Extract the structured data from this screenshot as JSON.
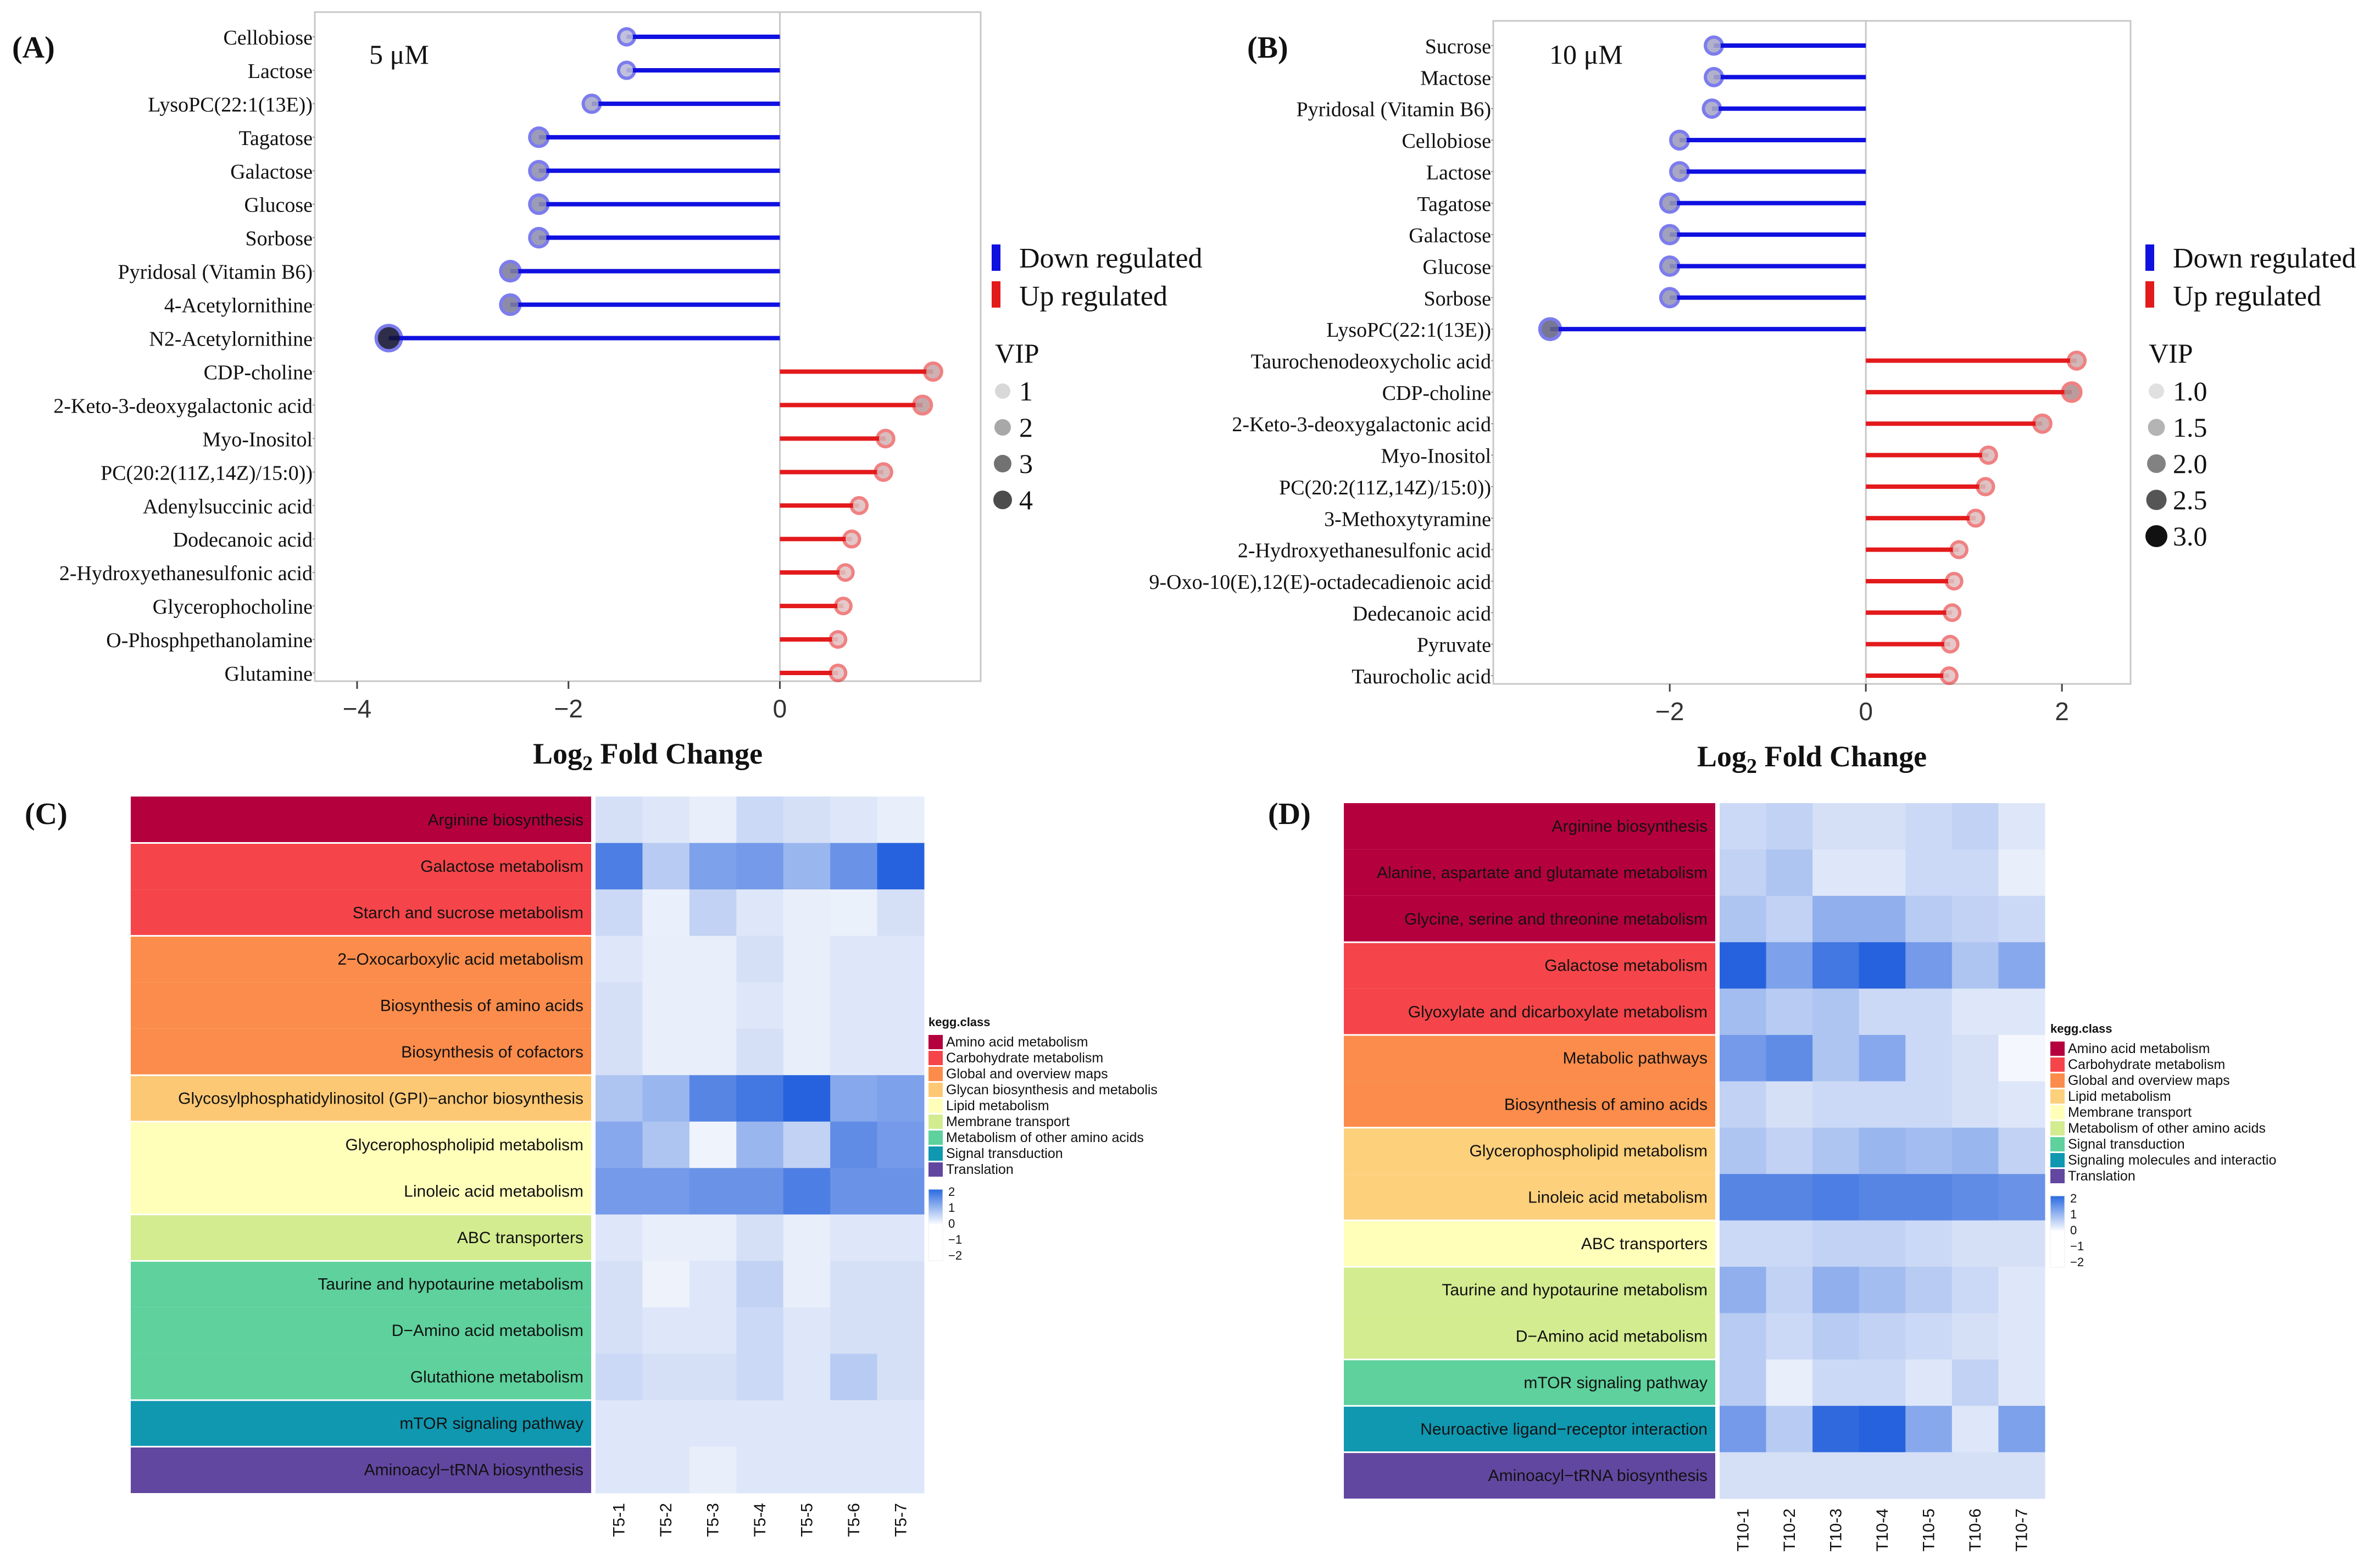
{
  "chart_data": [
    {
      "panel": "(A)",
      "type": "lollipop",
      "annotation": "5 μM",
      "xlabel": "Log2 Fold Change",
      "xlim": [
        -4.4,
        1.9
      ],
      "xticks": [
        -4,
        -2,
        0
      ],
      "grid": false,
      "legend_position": "right",
      "legend": {
        "down": "Down regulated",
        "up": "Up regulated",
        "vip_title": "VIP",
        "vip_levels": [
          "1",
          "2",
          "3",
          "4"
        ]
      },
      "colors": {
        "down": "#1010e0",
        "up": "#e31a1c"
      },
      "items": [
        {
          "label": "Cellobiose",
          "value": -1.45,
          "vip": 1.2
        },
        {
          "label": "Lactose",
          "value": -1.45,
          "vip": 1.2
        },
        {
          "label": "LysoPC(22:1(13E))",
          "value": -1.78,
          "vip": 1.5
        },
        {
          "label": "Tagatose",
          "value": -2.28,
          "vip": 1.9
        },
        {
          "label": "Galactose",
          "value": -2.28,
          "vip": 1.9
        },
        {
          "label": "Glucose",
          "value": -2.28,
          "vip": 1.9
        },
        {
          "label": "Sorbose",
          "value": -2.28,
          "vip": 1.9
        },
        {
          "label": "Pyridosal (Vitamin B6)",
          "value": -2.55,
          "vip": 2.2
        },
        {
          "label": "4-Acetylornithine",
          "value": -2.55,
          "vip": 2.2
        },
        {
          "label": "N2-Acetylornithine",
          "value": -3.7,
          "vip": 4.0
        },
        {
          "label": "CDP-choline",
          "value": 1.45,
          "vip": 1.5
        },
        {
          "label": "2-Keto-3-deoxygalactonic acid",
          "value": 1.35,
          "vip": 1.7
        },
        {
          "label": "Myo-Inositol",
          "value": 1.0,
          "vip": 1.3
        },
        {
          "label": "PC(20:2(11Z,14Z)/15:0))",
          "value": 0.98,
          "vip": 1.3
        },
        {
          "label": "Adenylsuccinic acid",
          "value": 0.75,
          "vip": 1.1
        },
        {
          "label": "Dodecanoic acid",
          "value": 0.68,
          "vip": 1.1
        },
        {
          "label": "2-Hydroxyethanesulfonic acid",
          "value": 0.62,
          "vip": 1.0
        },
        {
          "label": "Glycerophocholine",
          "value": 0.6,
          "vip": 1.0
        },
        {
          "label": "O-Phosphpethanolamine",
          "value": 0.55,
          "vip": 1.0
        },
        {
          "label": "Glutamine",
          "value": 0.55,
          "vip": 1.0
        }
      ]
    },
    {
      "panel": "(B)",
      "type": "lollipop",
      "annotation": "10 μM",
      "xlabel": "Log2 Fold Change",
      "xlim": [
        -3.8,
        2.7
      ],
      "xticks": [
        -2,
        0,
        2
      ],
      "grid": false,
      "legend_position": "right",
      "legend": {
        "down": "Down regulated",
        "up": "Up regulated",
        "vip_title": "VIP",
        "vip_levels": [
          "1.0",
          "1.5",
          "2.0",
          "2.5",
          "3.0"
        ]
      },
      "colors": {
        "down": "#1010e0",
        "up": "#e31a1c"
      },
      "items": [
        {
          "label": "Sucrose",
          "value": -1.55,
          "vip": 1.5
        },
        {
          "label": "Mactose",
          "value": -1.55,
          "vip": 1.5
        },
        {
          "label": "Pyridosal (Vitamin B6)",
          "value": -1.57,
          "vip": 1.5
        },
        {
          "label": "Cellobiose",
          "value": -1.9,
          "vip": 1.7
        },
        {
          "label": "Lactose",
          "value": -1.9,
          "vip": 1.7
        },
        {
          "label": "Tagatose",
          "value": -2.0,
          "vip": 1.8
        },
        {
          "label": "Galactose",
          "value": -2.0,
          "vip": 1.8
        },
        {
          "label": "Glucose",
          "value": -2.0,
          "vip": 1.8
        },
        {
          "label": "Sorbose",
          "value": -2.0,
          "vip": 1.8
        },
        {
          "label": "LysoPC(22:1(13E))",
          "value": -3.22,
          "vip": 2.6
        },
        {
          "label": "Taurochenodeoxycholic acid",
          "value": 2.15,
          "vip": 1.4
        },
        {
          "label": "CDP-choline",
          "value": 2.1,
          "vip": 1.9
        },
        {
          "label": "2-Keto-3-deoxygalactonic acid",
          "value": 1.8,
          "vip": 1.5
        },
        {
          "label": "Myo-Inositol",
          "value": 1.25,
          "vip": 1.2
        },
        {
          "label": "PC(20:2(11Z,14Z)/15:0))",
          "value": 1.22,
          "vip": 1.2
        },
        {
          "label": "3-Methoxytyramine",
          "value": 1.12,
          "vip": 1.1
        },
        {
          "label": "2-Hydroxyethanesulfonic acid",
          "value": 0.95,
          "vip": 1.1
        },
        {
          "label": "9-Oxo-10(E),12(E)-octadecadienoic acid",
          "value": 0.9,
          "vip": 1.0
        },
        {
          "label": "Dedecanoic acid",
          "value": 0.88,
          "vip": 1.0
        },
        {
          "label": "Pyruvate",
          "value": 0.86,
          "vip": 1.0
        },
        {
          "label": "Taurocholic acid",
          "value": 0.85,
          "vip": 1.0
        }
      ]
    },
    {
      "panel": "(C)",
      "type": "heatmap",
      "columns": [
        "T5-1",
        "T5-2",
        "T5-3",
        "T5-4",
        "T5-5",
        "T5-6",
        "T5-7"
      ],
      "legend_position": "right",
      "class_legend_title": "kegg.class",
      "classes": [
        {
          "name": "Amino acid metabolism",
          "color": "#b5003e"
        },
        {
          "name": "Carbohydrate metabolism",
          "color": "#f5454a"
        },
        {
          "name": "Global and overview maps",
          "color": "#fb8c4b"
        },
        {
          "name": "Glycan biosynthesis and metabolis",
          "color": "#fdc874"
        },
        {
          "name": "Lipid metabolism",
          "color": "#ffffba"
        },
        {
          "name": "Membrane transport",
          "color": "#d3ec90"
        },
        {
          "name": "Metabolism of other amino acids",
          "color": "#5ed19d"
        },
        {
          "name": "Signal transduction",
          "color": "#0f98b0"
        },
        {
          "name": "Translation",
          "color": "#6247a0"
        }
      ],
      "color_scale": {
        "ticks": [
          "2",
          "1",
          "0",
          "−1",
          "−2"
        ],
        "range": [
          -2,
          2
        ]
      },
      "rows": [
        {
          "label": "Arginine biosynthesis",
          "class": 0,
          "values": [
            0.2,
            0.1,
            0.0,
            0.3,
            0.2,
            0.1,
            0.0
          ]
        },
        {
          "label": "Galactose metabolism",
          "class": 1,
          "values": [
            1.6,
            0.5,
            1.1,
            1.2,
            0.8,
            1.3,
            2.0
          ]
        },
        {
          "label": "Starch and sucrose metabolism",
          "class": 1,
          "values": [
            0.3,
            -0.2,
            0.4,
            0.1,
            -0.1,
            -0.3,
            0.2
          ]
        },
        {
          "label": "2−Oxocarboxylic acid metabolism",
          "class": 2,
          "values": [
            0.1,
            0.0,
            0.0,
            0.2,
            0.0,
            0.1,
            0.1
          ]
        },
        {
          "label": "Biosynthesis of amino acids",
          "class": 2,
          "values": [
            0.2,
            0.0,
            0.0,
            0.1,
            0.0,
            0.1,
            0.1
          ]
        },
        {
          "label": "Biosynthesis of cofactors",
          "class": 2,
          "values": [
            0.2,
            0.0,
            0.0,
            0.2,
            -0.1,
            0.1,
            0.1
          ]
        },
        {
          "label": "Glycosylphosphatidylinositol (GPI)−anchor biosynthesis",
          "class": 3,
          "values": [
            0.6,
            0.8,
            1.5,
            1.7,
            2.4,
            1.0,
            1.1
          ]
        },
        {
          "label": "Glycerophospholipid metabolism",
          "class": 4,
          "values": [
            1.0,
            0.6,
            -0.6,
            0.8,
            0.4,
            1.4,
            1.2
          ]
        },
        {
          "label": "Linoleic acid metabolism",
          "class": 4,
          "values": [
            1.2,
            1.2,
            1.3,
            1.3,
            1.6,
            1.3,
            1.3
          ]
        },
        {
          "label": "ABC transporters",
          "class": 5,
          "values": [
            0.1,
            -0.1,
            0.0,
            0.2,
            0.0,
            0.1,
            0.1
          ]
        },
        {
          "label": "Taurine and hypotaurine metabolism",
          "class": 6,
          "values": [
            0.2,
            -0.5,
            0.1,
            0.4,
            -0.1,
            0.2,
            0.2
          ]
        },
        {
          "label": "D−Amino acid metabolism",
          "class": 6,
          "values": [
            0.2,
            0.1,
            0.1,
            0.3,
            0.1,
            0.2,
            0.2
          ]
        },
        {
          "label": "Glutathione metabolism",
          "class": 6,
          "values": [
            0.3,
            0.2,
            0.2,
            0.3,
            0.1,
            0.5,
            0.2
          ]
        },
        {
          "label": "mTOR signaling pathway",
          "class": 7,
          "values": [
            0.1,
            0.1,
            0.1,
            0.1,
            0.1,
            0.1,
            0.1
          ]
        },
        {
          "label": "Aminoacyl−tRNA biosynthesis",
          "class": 8,
          "values": [
            0.1,
            0.1,
            0.0,
            0.1,
            0.1,
            0.1,
            0.1
          ]
        }
      ]
    },
    {
      "panel": "(D)",
      "type": "heatmap",
      "columns": [
        "T10-1",
        "T10-2",
        "T10-3",
        "T10-4",
        "T10-5",
        "T10-6",
        "T10-7"
      ],
      "legend_position": "right",
      "class_legend_title": "kegg.class",
      "classes": [
        {
          "name": "Amino acid metabolism",
          "color": "#b5003e"
        },
        {
          "name": "Carbohydrate metabolism",
          "color": "#f5454a"
        },
        {
          "name": "Global and overview maps",
          "color": "#fb8c4b"
        },
        {
          "name": "Lipid metabolism",
          "color": "#fdd07c"
        },
        {
          "name": "Membrane transport",
          "color": "#ffffba"
        },
        {
          "name": "Metabolism of other amino acids",
          "color": "#d3ec90"
        },
        {
          "name": "Signal transduction",
          "color": "#5ed19d"
        },
        {
          "name": "Signaling molecules and interactio",
          "color": "#0f98b0"
        },
        {
          "name": "Translation",
          "color": "#6247a0"
        }
      ],
      "color_scale": {
        "ticks": [
          "2",
          "1",
          "0",
          "−1",
          "−2"
        ],
        "range": [
          -2,
          2
        ]
      },
      "rows": [
        {
          "label": "Arginine biosynthesis",
          "class": 0,
          "values": [
            0.3,
            0.4,
            0.2,
            0.2,
            0.3,
            0.4,
            0.1
          ]
        },
        {
          "label": "Alanine, aspartate and glutamate metabolism",
          "class": 0,
          "values": [
            0.4,
            0.6,
            0.1,
            0.1,
            0.3,
            0.3,
            0.0
          ]
        },
        {
          "label": "Glycine, serine and threonine metabolism",
          "class": 0,
          "values": [
            0.6,
            0.4,
            0.9,
            0.9,
            0.5,
            0.4,
            0.3
          ]
        },
        {
          "label": "Galactose metabolism",
          "class": 1,
          "values": [
            2.0,
            1.1,
            1.7,
            2.1,
            1.2,
            0.6,
            1.0
          ]
        },
        {
          "label": "Glyoxylate and dicarboxylate metabolism",
          "class": 1,
          "values": [
            0.7,
            0.5,
            0.6,
            0.3,
            0.3,
            0.1,
            0.1
          ]
        },
        {
          "label": "Metabolic pathways",
          "class": 2,
          "values": [
            1.2,
            1.4,
            0.6,
            1.0,
            0.3,
            0.2,
            -1.0
          ]
        },
        {
          "label": "Biosynthesis of amino acids",
          "class": 2,
          "values": [
            0.4,
            0.2,
            0.3,
            0.3,
            0.3,
            0.2,
            0.1
          ]
        },
        {
          "label": "Glycerophospholipid metabolism",
          "class": 3,
          "values": [
            0.6,
            0.4,
            0.6,
            0.8,
            0.7,
            0.8,
            0.4
          ]
        },
        {
          "label": "Linoleic acid metabolism",
          "class": 3,
          "values": [
            1.5,
            1.5,
            1.6,
            1.5,
            1.5,
            1.4,
            1.3
          ]
        },
        {
          "label": "ABC transporters",
          "class": 4,
          "values": [
            0.3,
            0.3,
            0.4,
            0.4,
            0.3,
            0.2,
            0.2
          ]
        },
        {
          "label": "Taurine and hypotaurine metabolism",
          "class": 5,
          "values": [
            0.9,
            0.4,
            0.9,
            0.7,
            0.5,
            0.3,
            0.1
          ]
        },
        {
          "label": "D−Amino acid metabolism",
          "class": 5,
          "values": [
            0.5,
            0.3,
            0.5,
            0.4,
            0.3,
            0.2,
            0.1
          ]
        },
        {
          "label": "mTOR signaling pathway",
          "class": 6,
          "values": [
            0.5,
            0.0,
            0.3,
            0.3,
            0.1,
            0.4,
            0.1
          ]
        },
        {
          "label": "Neuroactive ligand−receptor interaction",
          "class": 7,
          "values": [
            1.2,
            0.5,
            1.9,
            2.1,
            1.0,
            0.1,
            1.1
          ]
        },
        {
          "label": "Aminoacyl−tRNA biosynthesis",
          "class": 8,
          "values": [
            0.2,
            0.2,
            0.2,
            0.2,
            0.2,
            0.2,
            0.2
          ]
        }
      ]
    }
  ]
}
